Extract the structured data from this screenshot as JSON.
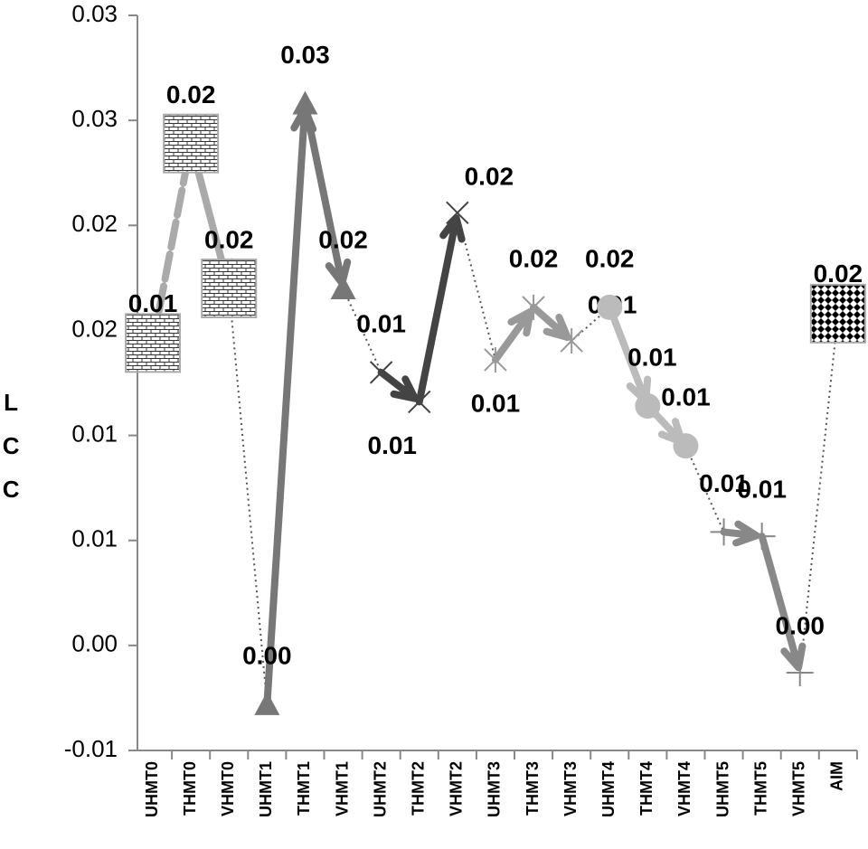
{
  "chart_data": {
    "type": "line",
    "y_label": "LCC",
    "categories": [
      "UHMT0",
      "THMT0",
      "VHMT0",
      "UHMT1",
      "THMT1",
      "VHMT1",
      "UHMT2",
      "THMT2",
      "VHMT2",
      "UHMT3",
      "THMT3",
      "VHMT3",
      "UHMT4",
      "THMT4",
      "VHMT4",
      "UHMT5",
      "THMT5",
      "VHMT5",
      "AIM"
    ],
    "values": [
      0.0144,
      0.0239,
      0.017,
      -0.0028,
      0.0258,
      0.017,
      0.013,
      0.0116,
      0.0206,
      0.0136,
      0.0161,
      0.0145,
      0.0161,
      0.0114,
      0.0095,
      0.0054,
      0.0052,
      -0.0013,
      0.0158
    ],
    "value_labels": [
      "0.01",
      "0.02",
      "0.02",
      "0.00",
      "0.03",
      "0.02",
      "0.01",
      "0.01",
      "0.02",
      "0.01",
      "0.02",
      "0.01",
      "0.02",
      "0.01",
      "0.01",
      "0.01",
      "0.01",
      "0.00",
      "0.02"
    ],
    "color": "#555555",
    "ylim": [
      -0.005,
      0.03
    ],
    "yticks": [
      {
        "value": -0.005,
        "label": "-0.01"
      },
      {
        "value": 0,
        "label": "0.00"
      },
      {
        "value": 0.005,
        "label": "0.01"
      },
      {
        "value": 0.01,
        "label": "0.01"
      },
      {
        "value": 0.015,
        "label": "0.02"
      },
      {
        "value": 0.02,
        "label": "0.02"
      },
      {
        "value": 0.025,
        "label": "0.03"
      },
      {
        "value": 0.03,
        "label": "0.03"
      }
    ],
    "grid": false
  }
}
